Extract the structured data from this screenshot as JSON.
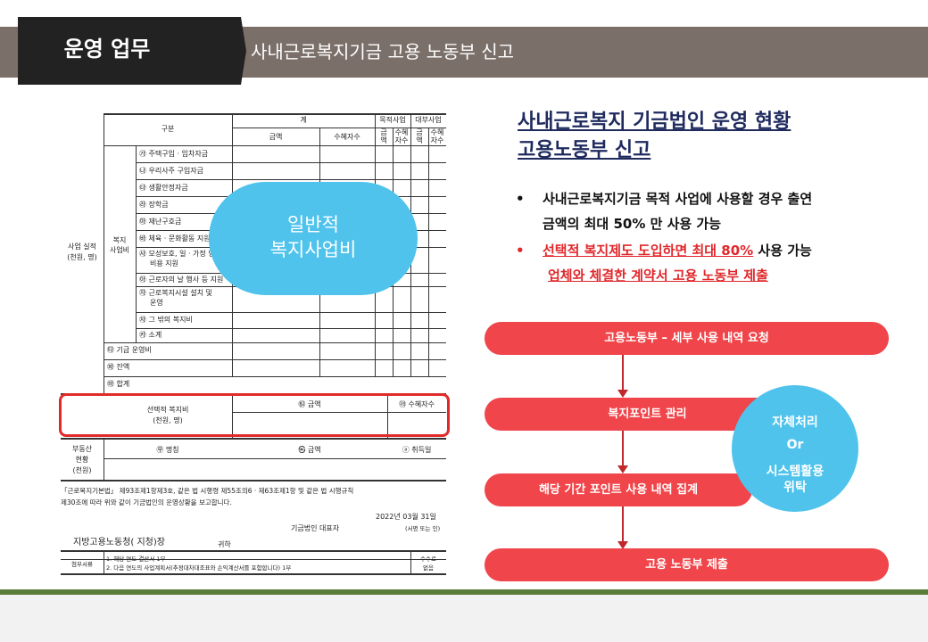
{
  "header": {
    "title": "운영 업무",
    "subtitle": "사내근로복지기금 고용 노동부 신고"
  },
  "form": {
    "col_gubun": "구분",
    "col_total": "계",
    "col_mokjeok": "목적사업",
    "col_daebu": "대부사업",
    "col_amount": "금액",
    "col_recipients": "수혜자수",
    "col_geum": "금",
    "col_aek": "액",
    "col_suhye": "수혜",
    "col_jasu": "자수",
    "row_group_label1": "사업 실적",
    "row_group_label2": "(천원, 명)",
    "welfare_label1": "복지",
    "welfare_label2": "사업비",
    "items": [
      "㉮ 주택구입 · 임차자금",
      "㉯ 우리사주 구입자금",
      "㉰ 생활안정자금",
      "㉱ 장학금",
      "㉲ 재난구호금",
      "㉳ 체육 · 문화활동 지원",
      "㉴ 모성보호, 일 · 가정 양립",
      "비용 지원",
      "㉵ 근로자의 날 행사 등 지원",
      "㉶ 근로복지시설 설치 및",
      "운영",
      "㉷ 그 밖의 복지비",
      "㉸ 소계"
    ],
    "fund_operation": "㉹ 기금 운영비",
    "balance": "㉺ 잔액",
    "total": "㉻ 합계",
    "selective1": "선택적 복지비",
    "selective2": "(천원, 명)",
    "sel_amount": "㉼ 금액",
    "sel_recipients": "㉽ 수혜자수",
    "realestate1": "부동산",
    "realestate2": "현황",
    "realestate3": "(천원)",
    "re_name": "㉾ 명칭",
    "re_amount": "㉿ 금액",
    "re_date": "ⓐ 취득일",
    "statement1": "「근로복지기본법」 제93조제1항제3호, 같은 법 시행령 제55조의6 · 제63조제1항 및 같은 법 시행규칙",
    "statement2": "제30조에 따라 위와 같이 기금법인의 운영상황을 보고합니다.",
    "date": "2022년  03월  31일",
    "representative": "기금법인 대표자",
    "sign": "(서명 또는 인)",
    "office": "지방고용노동청(     지청)장",
    "gwiha": "귀하",
    "attach_label": "첨부서류",
    "attach1": "1. 해당 연도 결산서 1부",
    "attach2": "2. 다음 연도의 사업계획서(추정대차대조표와 손익계산서를 포함합니다) 1부",
    "fee1": "수수료",
    "fee2": "없음",
    "blob_line1": "일반적",
    "blob_line2": "복지사업비"
  },
  "right": {
    "title_line1": "사내근로복지 기금법인 운영 현황",
    "title_line2": "고용노동부 신고",
    "bullet_dot": "•",
    "bullet1_line1": "사내근로복지기금 목적 사업에 사용할 경우 출연",
    "bullet1_line2": "금액의 최대 50% 만 사용 가능",
    "bullet2_red": "선택적 복지제도 도입하면 최대 80%",
    "bullet2_rest": " 사용 가능",
    "bullet2_line2": "업체와 체결한 계약서 고용 노동부 제출",
    "flow": [
      "고용노동부 – 세부 사용 내역 요청",
      "복지포인트  관리",
      "해당 기간 포인트 사용 내역 집계",
      "고용 노동부 제출"
    ],
    "circle_line1": "자체처리",
    "circle_line2": "Or",
    "circle_line3": "시스템활용",
    "circle_line4": "위탁"
  },
  "colors": {
    "header_bar": "#7b6f69",
    "header_tab": "#222222",
    "accent_red": "#f0454a",
    "accent_blue": "#4fc3ec",
    "title_navy": "#1f2a5e",
    "footer_green": "#5a7d3a"
  }
}
